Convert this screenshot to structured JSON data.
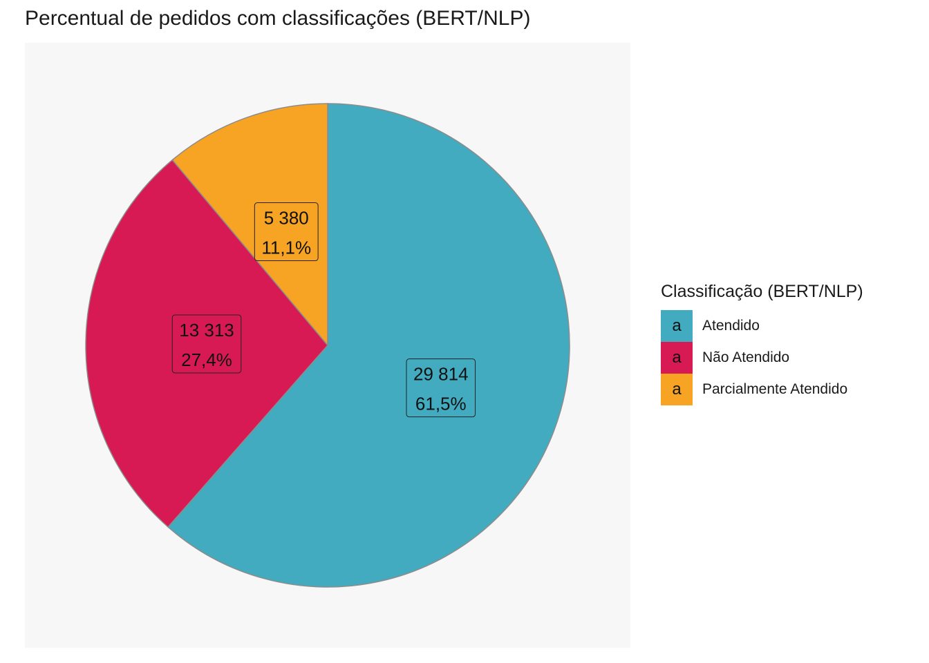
{
  "chart_data": {
    "type": "pie",
    "title": "Percentual de pedidos com classificações (BERT/NLP)",
    "legend": {
      "title": "Classificação (BERT/NLP)",
      "key_glyph": "a",
      "placement": "right"
    },
    "slices": [
      {
        "name": "Atendido",
        "value": 29814,
        "count_label": "29 814",
        "percent_label": "61,5%",
        "color": "#42abbf"
      },
      {
        "name": "Não Atendido",
        "value": 13313,
        "count_label": "13 313",
        "percent_label": "27,4%",
        "color": "#d81a54"
      },
      {
        "name": "Parcialmente Atendido",
        "value": 5380,
        "count_label": "5 380",
        "percent_label": "11,1%",
        "color": "#f7a324"
      }
    ],
    "start": "12 o'clock",
    "direction": "clockwise",
    "panel_color": "#f7f7f7",
    "slice_border_color": "#8c8c8c"
  }
}
